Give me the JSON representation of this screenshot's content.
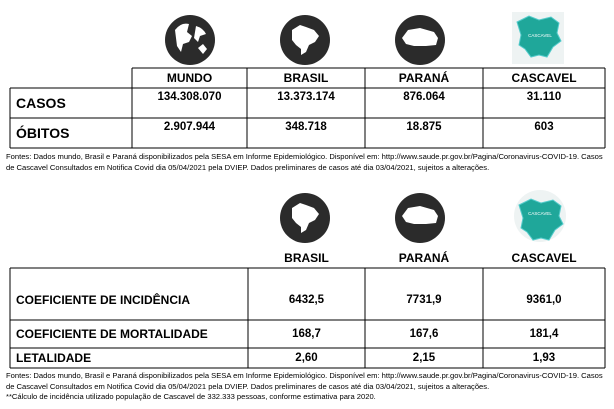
{
  "table1": {
    "headers": [
      "MUNDO",
      "BRASIL",
      "PARANÁ",
      "CASCAVEL"
    ],
    "rows": [
      {
        "label": "CASOS",
        "values": [
          "134.308.070",
          "13.373.174",
          "876.064",
          "31.110"
        ]
      },
      {
        "label": "ÓBITOS",
        "values": [
          "2.907.944",
          "348.718",
          "18.875",
          "603"
        ]
      }
    ],
    "map_label": "CASCAVEL"
  },
  "sources1": "Fontes: Dados mundo, Brasil e Paraná disponibilizados pela  SESA em Informe Epidemiológico. Disponível em: http://www.saude.pr.gov.br/Pagina/Coronavirus-COVID-19.  Casos de Cascavel Consultados em Notifica Covid dia 05/04/2021 pela DVIEP. Dados preliminares de casos até dia 03/04/2021, sujeitos a alterações.",
  "table2": {
    "headers": [
      "BRASIL",
      "PARANÁ",
      "CASCAVEL"
    ],
    "rows": [
      {
        "label": "COEFICIENTE DE INCIDÊNCIA",
        "values": [
          "6432,5",
          "7731,9",
          "9361,0"
        ]
      },
      {
        "label": "COEFICIENTE DE MORTALIDADE",
        "values": [
          "168,7",
          "167,6",
          "181,4"
        ]
      },
      {
        "label": "LETALIDADE",
        "values": [
          "2,60",
          "2,15",
          "1,93"
        ]
      }
    ],
    "map_label": "CASCAVEL"
  },
  "sources2": "Fontes: Dados mundo, Brasil e Paraná disponibilizados pela  SESA em Informe Epidemiológico. Disponível em: http://www.saude.pr.gov.br/Pagina/Coronavirus-COVID-19. Casos de Cascavel Consultados em Notifica Covid dia 05/04/2021 pela DVIEP. Dados preliminares de casos até dia 03/04/2021, sujeitos a alterações.",
  "footnote": "**Cálculo de incidência utilizado população de Cascavel de 332.333 pessoas, conforme estimativa para 2020."
}
